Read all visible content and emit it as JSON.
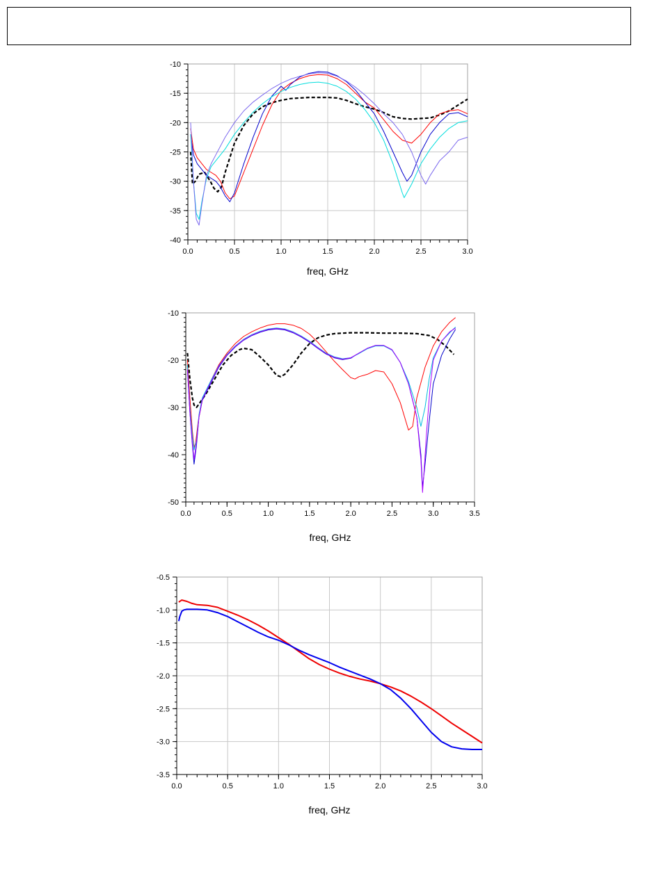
{
  "header": {
    "text": ""
  },
  "chart_data": [
    {
      "type": "line",
      "xlabel": "freq, GHz",
      "ylabel": "",
      "xlim": [
        0,
        3.0
      ],
      "ylim": [
        -40,
        -10
      ],
      "xticks": [
        0.0,
        0.5,
        1.0,
        1.5,
        2.0,
        2.5,
        3.0
      ],
      "xtick_labels": [
        "0.0",
        "0.5",
        "1.0",
        "1.5",
        "2.0",
        "2.5",
        "3.0"
      ],
      "yticks": [
        -40,
        -35,
        -30,
        -25,
        -20,
        -15,
        -10
      ],
      "ytick_labels": [
        "-40",
        "-35",
        "-30",
        "-25",
        "-20",
        "-15",
        "-10"
      ],
      "grid": true,
      "series": [
        {
          "color": "#000000",
          "dashed": true,
          "width": 2.2,
          "x": [
            0.03,
            0.05,
            0.08,
            0.12,
            0.18,
            0.24,
            0.28,
            0.32,
            0.36,
            0.4,
            0.45,
            0.5,
            0.6,
            0.7,
            0.8,
            0.9,
            1.0,
            1.1,
            1.2,
            1.3,
            1.4,
            1.5,
            1.6,
            1.7,
            1.8,
            1.9,
            2.0,
            2.1,
            2.2,
            2.3,
            2.4,
            2.5,
            2.6,
            2.7,
            2.8,
            2.9,
            3.0
          ],
          "y": [
            -25,
            -30.5,
            -30,
            -28.8,
            -28.5,
            -30,
            -31.2,
            -31.8,
            -31,
            -28.5,
            -26,
            -23.5,
            -20.5,
            -18.5,
            -17.3,
            -16.6,
            -16.2,
            -15.9,
            -15.8,
            -15.7,
            -15.7,
            -15.7,
            -15.8,
            -16.2,
            -16.8,
            -17.3,
            -17.7,
            -18.3,
            -19,
            -19.3,
            -19.4,
            -19.3,
            -19.2,
            -18.7,
            -18,
            -17,
            -16
          ]
        },
        {
          "color": "#ff0000",
          "width": 1,
          "x": [
            0.03,
            0.06,
            0.1,
            0.15,
            0.2,
            0.25,
            0.3,
            0.35,
            0.4,
            0.45,
            0.5,
            0.6,
            0.7,
            0.8,
            0.9,
            1.0,
            1.1,
            1.2,
            1.3,
            1.4,
            1.5,
            1.6,
            1.7,
            1.8,
            1.9,
            2.0,
            2.1,
            2.2,
            2.3,
            2.4,
            2.5,
            2.6,
            2.7,
            2.8,
            2.9,
            3.0
          ],
          "y": [
            -21,
            -24.5,
            -26,
            -27,
            -28,
            -28.5,
            -29,
            -30,
            -32,
            -33,
            -32.5,
            -28.5,
            -24.5,
            -20.5,
            -17,
            -14.5,
            -13.3,
            -12.5,
            -12,
            -11.8,
            -11.9,
            -12.5,
            -13.5,
            -15,
            -16.5,
            -17.5,
            -19.5,
            -21.5,
            -23,
            -23.5,
            -22,
            -20,
            -18.5,
            -18,
            -17.8,
            -18.5
          ]
        },
        {
          "color": "#0000cc",
          "width": 1,
          "x": [
            0.03,
            0.06,
            0.1,
            0.15,
            0.2,
            0.25,
            0.3,
            0.35,
            0.4,
            0.45,
            0.5,
            0.6,
            0.7,
            0.8,
            0.9,
            1.0,
            1.05,
            1.1,
            1.2,
            1.3,
            1.4,
            1.5,
            1.6,
            1.7,
            1.8,
            1.9,
            2.0,
            2.1,
            2.2,
            2.3,
            2.35,
            2.4,
            2.5,
            2.6,
            2.7,
            2.8,
            2.9,
            3.0
          ],
          "y": [
            -22,
            -25.5,
            -27,
            -28,
            -29,
            -29.5,
            -30,
            -31,
            -32.5,
            -33.5,
            -32,
            -27,
            -22.5,
            -18.5,
            -15.5,
            -13.8,
            -14.5,
            -13.5,
            -12.2,
            -11.6,
            -11.3,
            -11.4,
            -12,
            -13,
            -14.5,
            -16.5,
            -18.5,
            -21.5,
            -25,
            -28.5,
            -30,
            -29,
            -25,
            -22,
            -20,
            -18.5,
            -18.3,
            -19
          ]
        },
        {
          "color": "#00dddd",
          "width": 1,
          "x": [
            0.03,
            0.06,
            0.09,
            0.12,
            0.15,
            0.2,
            0.25,
            0.3,
            0.4,
            0.5,
            0.6,
            0.7,
            0.8,
            0.9,
            1.0,
            1.1,
            1.2,
            1.3,
            1.4,
            1.5,
            1.6,
            1.7,
            1.8,
            1.9,
            2.0,
            2.1,
            2.2,
            2.3,
            2.32,
            2.4,
            2.5,
            2.6,
            2.7,
            2.8,
            2.9,
            3.0
          ],
          "y": [
            -22,
            -30,
            -35.5,
            -36.5,
            -33.5,
            -29.5,
            -27.5,
            -26.5,
            -24.5,
            -22,
            -20,
            -18.2,
            -16.8,
            -15.6,
            -14.7,
            -14,
            -13.5,
            -13.2,
            -13.1,
            -13.3,
            -13.8,
            -14.7,
            -16,
            -17.8,
            -20,
            -23,
            -27,
            -32,
            -32.8,
            -30.5,
            -27,
            -24.5,
            -22.5,
            -21,
            -20,
            -19.7
          ]
        },
        {
          "color": "#7b68ee",
          "width": 1,
          "x": [
            0.03,
            0.06,
            0.09,
            0.12,
            0.15,
            0.2,
            0.25,
            0.3,
            0.4,
            0.5,
            0.6,
            0.7,
            0.8,
            0.9,
            1.0,
            1.1,
            1.2,
            1.3,
            1.4,
            1.5,
            1.6,
            1.7,
            1.8,
            1.9,
            2.0,
            2.1,
            2.2,
            2.3,
            2.4,
            2.5,
            2.55,
            2.6,
            2.7,
            2.8,
            2.9,
            3.0
          ],
          "y": [
            -20,
            -30,
            -36.5,
            -37.5,
            -34,
            -29,
            -27,
            -25.5,
            -22.5,
            -20,
            -18,
            -16.5,
            -15.3,
            -14.2,
            -13.3,
            -12.6,
            -12.1,
            -11.7,
            -11.5,
            -11.6,
            -12.1,
            -12.9,
            -14,
            -15.3,
            -16.8,
            -18.5,
            -20,
            -22,
            -25,
            -29,
            -30.5,
            -29,
            -26.5,
            -25,
            -23,
            -22.5
          ]
        }
      ]
    },
    {
      "type": "line",
      "xlabel": "freq, GHz",
      "ylabel": "",
      "xlim": [
        0,
        3.5
      ],
      "ylim": [
        -50,
        -10
      ],
      "xticks": [
        0.0,
        0.5,
        1.0,
        1.5,
        2.0,
        2.5,
        3.0,
        3.5
      ],
      "xtick_labels": [
        "0.0",
        "0.5",
        "1.0",
        "1.5",
        "2.0",
        "2.5",
        "3.0",
        "3.5"
      ],
      "yticks": [
        -50,
        -40,
        -30,
        -20,
        -10
      ],
      "ytick_labels": [
        "-50",
        "-40",
        "-30",
        "-20",
        "-10"
      ],
      "grid": false,
      "series": [
        {
          "color": "#000000",
          "dashed": true,
          "width": 2.2,
          "x": [
            0.02,
            0.05,
            0.08,
            0.1,
            0.13,
            0.18,
            0.25,
            0.35,
            0.45,
            0.55,
            0.65,
            0.7,
            0.8,
            0.9,
            1.0,
            1.1,
            1.15,
            1.2,
            1.3,
            1.4,
            1.5,
            1.6,
            1.7,
            1.8,
            1.9,
            2.0,
            2.2,
            2.4,
            2.6,
            2.8,
            2.95,
            3.05,
            3.15,
            3.25
          ],
          "y": [
            -18.5,
            -24,
            -28,
            -29.5,
            -30,
            -28.8,
            -27,
            -24,
            -21,
            -19,
            -17.8,
            -17.5,
            -17.8,
            -19.3,
            -21,
            -23.2,
            -23.5,
            -23,
            -21,
            -18.5,
            -16.5,
            -15.3,
            -14.7,
            -14.4,
            -14.3,
            -14.2,
            -14.2,
            -14.3,
            -14.3,
            -14.4,
            -14.8,
            -15.6,
            -17,
            -18.8
          ]
        },
        {
          "color": "#ff0000",
          "width": 1,
          "x": [
            0.02,
            0.05,
            0.08,
            0.1,
            0.12,
            0.15,
            0.2,
            0.3,
            0.4,
            0.5,
            0.6,
            0.7,
            0.8,
            0.9,
            1.0,
            1.1,
            1.2,
            1.3,
            1.4,
            1.5,
            1.6,
            1.7,
            1.8,
            1.9,
            2.0,
            2.05,
            2.1,
            2.2,
            2.3,
            2.4,
            2.5,
            2.6,
            2.7,
            2.75,
            2.8,
            2.9,
            3.0,
            3.1,
            3.2,
            3.27
          ],
          "y": [
            -20,
            -28,
            -35,
            -38.5,
            -37.5,
            -33,
            -28.5,
            -24.5,
            -21,
            -18.5,
            -16.5,
            -15,
            -14,
            -13.2,
            -12.6,
            -12.3,
            -12.3,
            -12.6,
            -13.3,
            -14.5,
            -16.2,
            -18.2,
            -20.2,
            -22,
            -23.7,
            -24,
            -23.5,
            -23,
            -22.2,
            -22.5,
            -25,
            -29,
            -34.8,
            -34,
            -28,
            -21.5,
            -17,
            -14,
            -12,
            -11
          ]
        },
        {
          "color": "#0000cc",
          "width": 1,
          "x": [
            0.02,
            0.05,
            0.08,
            0.1,
            0.13,
            0.16,
            0.2,
            0.3,
            0.4,
            0.5,
            0.6,
            0.7,
            0.8,
            0.9,
            1.0,
            1.1,
            1.2,
            1.3,
            1.4,
            1.5,
            1.6,
            1.7,
            1.8,
            1.9,
            2.0,
            2.1,
            2.2,
            2.3,
            2.4,
            2.5,
            2.6,
            2.7,
            2.8,
            2.85,
            2.87,
            2.9,
            2.95,
            3.0,
            3.1,
            3.2,
            3.27
          ],
          "y": [
            -22,
            -31,
            -38,
            -42,
            -38,
            -32,
            -28.5,
            -25,
            -21.5,
            -19,
            -17.2,
            -15.8,
            -14.8,
            -14.1,
            -13.6,
            -13.4,
            -13.6,
            -14.2,
            -15.1,
            -16.2,
            -17.5,
            -18.7,
            -19.5,
            -19.9,
            -19.6,
            -18.5,
            -17.5,
            -16.9,
            -16.9,
            -17.8,
            -20.5,
            -25,
            -32,
            -40,
            -47,
            -42,
            -33,
            -25,
            -19,
            -15.5,
            -13.5
          ]
        },
        {
          "color": "#00bbdd",
          "width": 1,
          "x": [
            0.02,
            0.05,
            0.08,
            0.1,
            0.13,
            0.16,
            0.2,
            0.3,
            0.4,
            0.5,
            0.6,
            0.7,
            0.8,
            0.9,
            1.0,
            1.1,
            1.2,
            1.3,
            1.4,
            1.5,
            1.6,
            1.7,
            1.8,
            1.9,
            2.0,
            2.1,
            2.2,
            2.3,
            2.4,
            2.5,
            2.6,
            2.7,
            2.8,
            2.85,
            2.9,
            2.95,
            3.0,
            3.1,
            3.2,
            3.27
          ],
          "y": [
            -21,
            -30,
            -36,
            -39,
            -37,
            -31.5,
            -28,
            -24.5,
            -21.2,
            -18.8,
            -17,
            -15.6,
            -14.6,
            -13.9,
            -13.4,
            -13.2,
            -13.4,
            -14,
            -14.9,
            -16,
            -17.3,
            -18.5,
            -19.3,
            -19.7,
            -19.5,
            -18.6,
            -17.6,
            -17,
            -17,
            -17.9,
            -20.5,
            -24.5,
            -30,
            -34,
            -30,
            -24,
            -19.5,
            -16,
            -14.2,
            -13
          ]
        },
        {
          "color": "#aa00ff",
          "width": 1,
          "x": [
            0.02,
            0.05,
            0.08,
            0.1,
            0.13,
            0.16,
            0.2,
            0.3,
            0.4,
            0.5,
            0.6,
            0.7,
            0.8,
            0.9,
            1.0,
            1.1,
            1.2,
            1.3,
            1.4,
            1.5,
            1.6,
            1.7,
            1.8,
            1.9,
            2.0,
            2.1,
            2.2,
            2.3,
            2.4,
            2.5,
            2.6,
            2.7,
            2.8,
            2.85,
            2.87,
            2.89,
            2.92,
            2.96,
            3.0,
            3.1,
            3.2,
            3.27
          ],
          "y": [
            -22,
            -31,
            -37.5,
            -41,
            -37.5,
            -32,
            -28.3,
            -24.8,
            -21.3,
            -18.9,
            -17.1,
            -15.7,
            -14.7,
            -14,
            -13.5,
            -13.3,
            -13.5,
            -14.1,
            -15,
            -16.1,
            -17.4,
            -18.6,
            -19.4,
            -19.8,
            -19.5,
            -18.5,
            -17.5,
            -16.9,
            -16.9,
            -17.8,
            -20.5,
            -25,
            -32,
            -41,
            -48,
            -43,
            -35,
            -26,
            -20,
            -16,
            -14,
            -13.2
          ]
        }
      ]
    },
    {
      "type": "line",
      "xlabel": "freq, GHz",
      "ylabel": "",
      "xlim": [
        0,
        3.0
      ],
      "ylim": [
        -3.5,
        -0.5
      ],
      "xticks": [
        0.0,
        0.5,
        1.0,
        1.5,
        2.0,
        2.5,
        3.0
      ],
      "xtick_labels": [
        "0.0",
        "0.5",
        "1.0",
        "1.5",
        "2.0",
        "2.5",
        "3.0"
      ],
      "yticks": [
        -3.5,
        -3.0,
        -2.5,
        -2.0,
        -1.5,
        -1.0,
        -0.5
      ],
      "ytick_labels": [
        "-3.5",
        "-3.0",
        "-2.5",
        "-2.0",
        "-1.5",
        "-1.0",
        "-0.5"
      ],
      "grid": true,
      "series": [
        {
          "color": "#ee0000",
          "width": 2,
          "x": [
            0.02,
            0.05,
            0.1,
            0.15,
            0.2,
            0.3,
            0.4,
            0.5,
            0.6,
            0.7,
            0.8,
            0.9,
            1.0,
            1.1,
            1.2,
            1.3,
            1.4,
            1.5,
            1.6,
            1.7,
            1.8,
            1.9,
            2.0,
            2.1,
            2.2,
            2.3,
            2.4,
            2.5,
            2.6,
            2.7,
            2.8,
            2.9,
            3.0
          ],
          "y": [
            -0.88,
            -0.85,
            -0.87,
            -0.9,
            -0.92,
            -0.93,
            -0.96,
            -1.02,
            -1.08,
            -1.15,
            -1.23,
            -1.32,
            -1.42,
            -1.52,
            -1.63,
            -1.74,
            -1.83,
            -1.9,
            -1.96,
            -2.01,
            -2.05,
            -2.08,
            -2.12,
            -2.17,
            -2.23,
            -2.31,
            -2.4,
            -2.5,
            -2.61,
            -2.72,
            -2.82,
            -2.92,
            -3.02
          ]
        },
        {
          "color": "#0000ee",
          "width": 2,
          "x": [
            0.02,
            0.03,
            0.05,
            0.07,
            0.1,
            0.2,
            0.3,
            0.4,
            0.5,
            0.6,
            0.7,
            0.8,
            0.9,
            1.0,
            1.1,
            1.2,
            1.3,
            1.4,
            1.5,
            1.6,
            1.7,
            1.8,
            1.9,
            2.0,
            2.1,
            2.2,
            2.3,
            2.4,
            2.5,
            2.6,
            2.7,
            2.8,
            2.9,
            3.0
          ],
          "y": [
            -1.17,
            -1.1,
            -1.02,
            -1.0,
            -0.99,
            -0.99,
            -1.0,
            -1.04,
            -1.1,
            -1.18,
            -1.26,
            -1.34,
            -1.41,
            -1.46,
            -1.53,
            -1.61,
            -1.68,
            -1.74,
            -1.8,
            -1.87,
            -1.93,
            -1.99,
            -2.05,
            -2.12,
            -2.21,
            -2.34,
            -2.5,
            -2.68,
            -2.86,
            -3.0,
            -3.08,
            -3.11,
            -3.12,
            -3.12
          ]
        }
      ]
    }
  ]
}
